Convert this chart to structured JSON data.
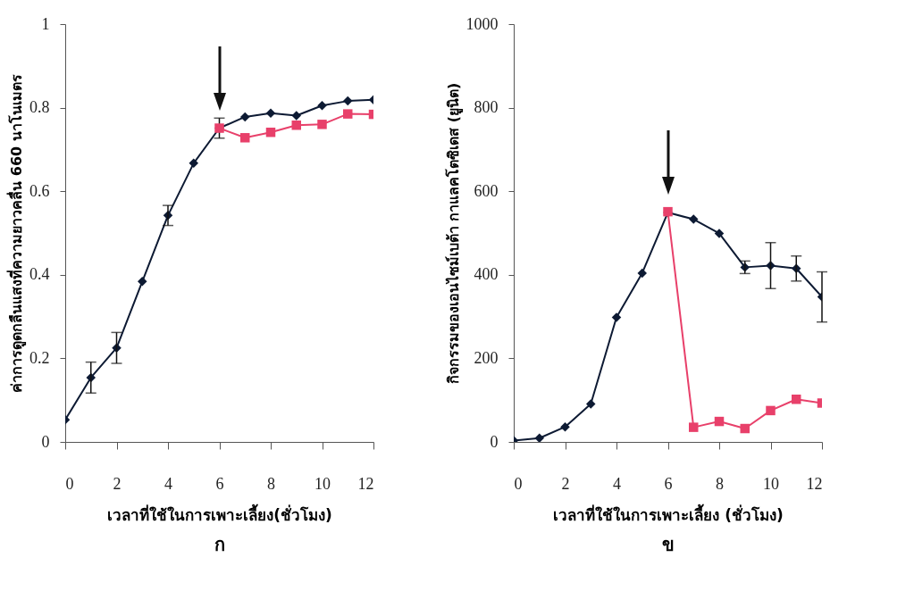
{
  "chart_data": [
    {
      "type": "line",
      "title": "ก",
      "xlabel": "เวลาที่ใช้ในการเพาะเลี้ยง(ชั่วโมง)",
      "ylabel": "ค่าการดูดกลืนแสงที่ความยาวคลื่น 660 นาโนเมตร",
      "x": [
        0,
        1,
        2,
        3,
        4,
        5,
        6,
        7,
        8,
        9,
        10,
        11,
        12
      ],
      "xlim": [
        0,
        12
      ],
      "xticks": [
        0,
        2,
        4,
        6,
        8,
        10,
        12
      ],
      "ylim": [
        0,
        1
      ],
      "yticks": [
        0,
        0.2,
        0.4,
        0.6,
        0.8,
        1
      ],
      "series": [
        {
          "color": "#0d1a33",
          "marker": "diamond",
          "values": [
            0.053,
            0.154,
            0.225,
            0.384,
            0.542,
            0.667,
            0.751,
            0.778,
            0.787,
            0.781,
            0.805,
            0.816,
            0.819
          ],
          "errors": [
            null,
            0.037,
            0.037,
            null,
            0.024,
            null,
            0.024,
            null,
            null,
            null,
            null,
            null,
            null
          ]
        },
        {
          "color": "#e8406a",
          "marker": "square",
          "x": [
            6,
            7,
            8,
            9,
            10,
            11,
            12
          ],
          "values": [
            0.751,
            0.728,
            0.741,
            0.758,
            0.76,
            0.785,
            0.784
          ]
        }
      ]
    },
    {
      "type": "line",
      "title": "ข",
      "xlabel": "เวลาที่ใช้ในการเพาะเลี้ยง (ชั่วโมง)",
      "ylabel": "กิจกรรมของเอนไซม์เบต้า กาแลคโตซิเดส (ยูนิต)",
      "x": [
        0,
        1,
        2,
        3,
        4,
        5,
        6,
        7,
        8,
        9,
        10,
        11,
        12
      ],
      "xlim": [
        0,
        12
      ],
      "xticks": [
        0,
        2,
        4,
        6,
        8,
        10,
        12
      ],
      "ylim": [
        0,
        1000
      ],
      "yticks": [
        0,
        200,
        400,
        600,
        800,
        1000
      ],
      "series": [
        {
          "color": "#0d1a33",
          "marker": "diamond",
          "values": [
            3,
            9,
            36,
            91,
            298,
            404,
            549,
            533,
            499,
            418,
            422,
            415,
            347
          ],
          "errors": [
            null,
            null,
            null,
            null,
            null,
            null,
            null,
            null,
            null,
            15,
            55,
            30,
            60
          ]
        },
        {
          "color": "#e8406a",
          "marker": "square",
          "x": [
            6,
            7,
            8,
            9,
            10,
            11,
            12
          ],
          "values": [
            551,
            35,
            49,
            32,
            75,
            102,
            93
          ]
        }
      ]
    }
  ]
}
